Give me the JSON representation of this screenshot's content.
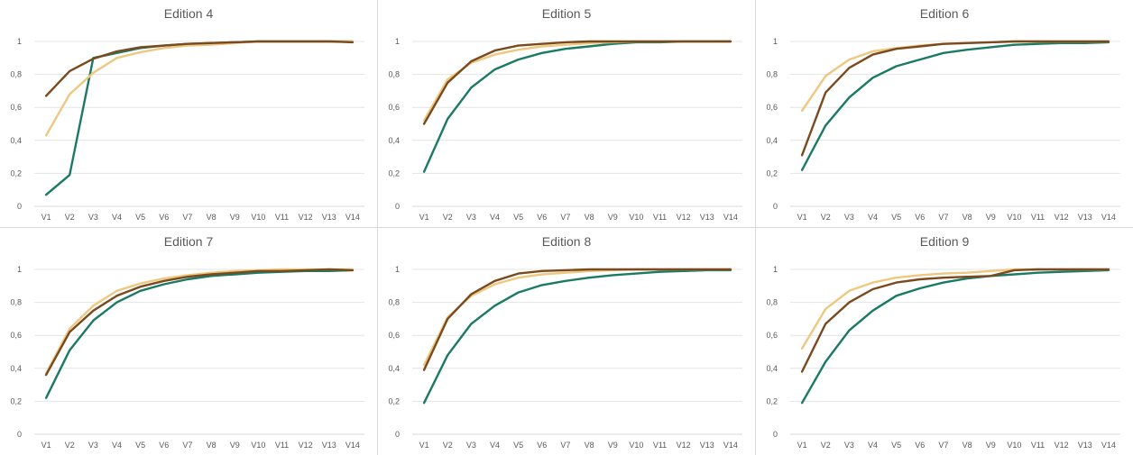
{
  "chart_data": [
    {
      "type": "line",
      "title": "Edition 4",
      "categories": [
        "V1",
        "V2",
        "V3",
        "V4",
        "V5",
        "V6",
        "V7",
        "V8",
        "V9",
        "V10",
        "V11",
        "V12",
        "V13",
        "V14"
      ],
      "ylim": [
        0,
        1
      ],
      "yticks": [
        "0",
        "0,2",
        "0,4",
        "0,6",
        "0,8",
        "1"
      ],
      "grid": true,
      "series": [
        {
          "color": "#1a7a63",
          "values": [
            0.07,
            0.19,
            0.9,
            0.93,
            0.96,
            0.975,
            0.985,
            0.99,
            0.995,
            1.0,
            1.0,
            1.0,
            1.0,
            1.0
          ]
        },
        {
          "color": "#edc880",
          "values": [
            0.43,
            0.68,
            0.81,
            0.9,
            0.935,
            0.96,
            0.975,
            0.98,
            0.99,
            1.0,
            1.0,
            1.0,
            1.0,
            1.0
          ]
        },
        {
          "color": "#7a4a1e",
          "values": [
            0.67,
            0.82,
            0.895,
            0.94,
            0.965,
            0.975,
            0.985,
            0.99,
            0.995,
            1.0,
            1.0,
            1.0,
            1.0,
            0.995
          ]
        }
      ]
    },
    {
      "type": "line",
      "title": "Edition 5",
      "categories": [
        "V1",
        "V2",
        "V3",
        "V4",
        "V5",
        "V6",
        "V7",
        "V8",
        "V9",
        "V10",
        "V11",
        "V12",
        "V13",
        "V14"
      ],
      "ylim": [
        0,
        1
      ],
      "yticks": [
        "0",
        "0,2",
        "0,4",
        "0,6",
        "0,8",
        "1"
      ],
      "grid": true,
      "series": [
        {
          "color": "#1a7a63",
          "values": [
            0.21,
            0.53,
            0.72,
            0.83,
            0.89,
            0.93,
            0.955,
            0.97,
            0.985,
            0.995,
            0.995,
            1.0,
            1.0,
            1.0
          ]
        },
        {
          "color": "#edc880",
          "values": [
            0.52,
            0.77,
            0.87,
            0.92,
            0.95,
            0.97,
            0.98,
            0.99,
            0.995,
            1.0,
            1.0,
            1.0,
            1.0,
            1.0
          ]
        },
        {
          "color": "#7a4a1e",
          "values": [
            0.5,
            0.75,
            0.88,
            0.945,
            0.975,
            0.985,
            0.995,
            1.0,
            1.0,
            1.0,
            1.0,
            1.0,
            1.0,
            1.0
          ]
        }
      ]
    },
    {
      "type": "line",
      "title": "Edition 6",
      "categories": [
        "V1",
        "V2",
        "V3",
        "V4",
        "V5",
        "V6",
        "V7",
        "V8",
        "V9",
        "V10",
        "V11",
        "V12",
        "V13",
        "V14"
      ],
      "ylim": [
        0,
        1
      ],
      "yticks": [
        "0",
        "0,2",
        "0,4",
        "0,6",
        "0,8",
        "1"
      ],
      "grid": true,
      "series": [
        {
          "color": "#1a7a63",
          "values": [
            0.22,
            0.49,
            0.66,
            0.78,
            0.85,
            0.89,
            0.93,
            0.95,
            0.965,
            0.98,
            0.985,
            0.99,
            0.99,
            0.995
          ]
        },
        {
          "color": "#edc880",
          "values": [
            0.58,
            0.79,
            0.89,
            0.94,
            0.96,
            0.975,
            0.985,
            0.99,
            0.995,
            1.0,
            1.0,
            1.0,
            1.0,
            1.0
          ]
        },
        {
          "color": "#7a4a1e",
          "values": [
            0.31,
            0.69,
            0.84,
            0.92,
            0.955,
            0.97,
            0.985,
            0.99,
            0.995,
            1.0,
            1.0,
            1.0,
            1.0,
            1.0
          ]
        }
      ]
    },
    {
      "type": "line",
      "title": "Edition 7",
      "categories": [
        "V1",
        "V2",
        "V3",
        "V4",
        "V5",
        "V6",
        "V7",
        "V8",
        "V9",
        "V10",
        "V11",
        "V12",
        "V13",
        "V14"
      ],
      "ylim": [
        0,
        1
      ],
      "yticks": [
        "0",
        "0,2",
        "0,4",
        "0,6",
        "0,8",
        "1"
      ],
      "grid": true,
      "series": [
        {
          "color": "#1a7a63",
          "values": [
            0.22,
            0.51,
            0.69,
            0.8,
            0.87,
            0.91,
            0.94,
            0.96,
            0.97,
            0.98,
            0.985,
            0.99,
            0.99,
            0.995
          ]
        },
        {
          "color": "#edc880",
          "values": [
            0.37,
            0.64,
            0.78,
            0.87,
            0.915,
            0.945,
            0.965,
            0.98,
            0.99,
            0.995,
            1.0,
            1.0,
            1.0,
            1.0
          ]
        },
        {
          "color": "#7a4a1e",
          "values": [
            0.36,
            0.62,
            0.75,
            0.84,
            0.895,
            0.93,
            0.955,
            0.97,
            0.98,
            0.99,
            0.99,
            0.995,
            1.0,
            0.995
          ]
        }
      ]
    },
    {
      "type": "line",
      "title": "Edition 8",
      "categories": [
        "V1",
        "V2",
        "V3",
        "V4",
        "V5",
        "V6",
        "V7",
        "V8",
        "V9",
        "V10",
        "V11",
        "V12",
        "V13",
        "V14"
      ],
      "ylim": [
        0,
        1
      ],
      "yticks": [
        "0",
        "0,2",
        "0,4",
        "0,6",
        "0,8",
        "1"
      ],
      "grid": true,
      "series": [
        {
          "color": "#1a7a63",
          "values": [
            0.19,
            0.48,
            0.67,
            0.78,
            0.86,
            0.905,
            0.93,
            0.95,
            0.965,
            0.975,
            0.985,
            0.99,
            0.995,
            0.995
          ]
        },
        {
          "color": "#edc880",
          "values": [
            0.42,
            0.71,
            0.84,
            0.91,
            0.95,
            0.97,
            0.98,
            0.99,
            0.995,
            1.0,
            1.0,
            1.0,
            1.0,
            1.0
          ]
        },
        {
          "color": "#7a4a1e",
          "values": [
            0.39,
            0.7,
            0.85,
            0.93,
            0.975,
            0.99,
            0.995,
            1.0,
            1.0,
            1.0,
            1.0,
            1.0,
            1.0,
            1.0
          ]
        }
      ]
    },
    {
      "type": "line",
      "title": "Edition 9",
      "categories": [
        "V1",
        "V2",
        "V3",
        "V4",
        "V5",
        "V6",
        "V7",
        "V8",
        "V9",
        "V10",
        "V11",
        "V12",
        "V13",
        "V14"
      ],
      "ylim": [
        0,
        1
      ],
      "yticks": [
        "0",
        "0,2",
        "0,4",
        "0,6",
        "0,8",
        "1"
      ],
      "grid": true,
      "series": [
        {
          "color": "#1a7a63",
          "values": [
            0.19,
            0.44,
            0.63,
            0.75,
            0.84,
            0.885,
            0.92,
            0.945,
            0.96,
            0.97,
            0.98,
            0.985,
            0.99,
            0.995
          ]
        },
        {
          "color": "#edc880",
          "values": [
            0.52,
            0.76,
            0.87,
            0.92,
            0.95,
            0.965,
            0.975,
            0.98,
            0.99,
            1.0,
            1.0,
            1.0,
            1.0,
            1.0
          ]
        },
        {
          "color": "#7a4a1e",
          "values": [
            0.38,
            0.67,
            0.8,
            0.88,
            0.92,
            0.94,
            0.95,
            0.955,
            0.96,
            0.995,
            1.0,
            1.0,
            1.0,
            1.0
          ]
        }
      ]
    }
  ]
}
